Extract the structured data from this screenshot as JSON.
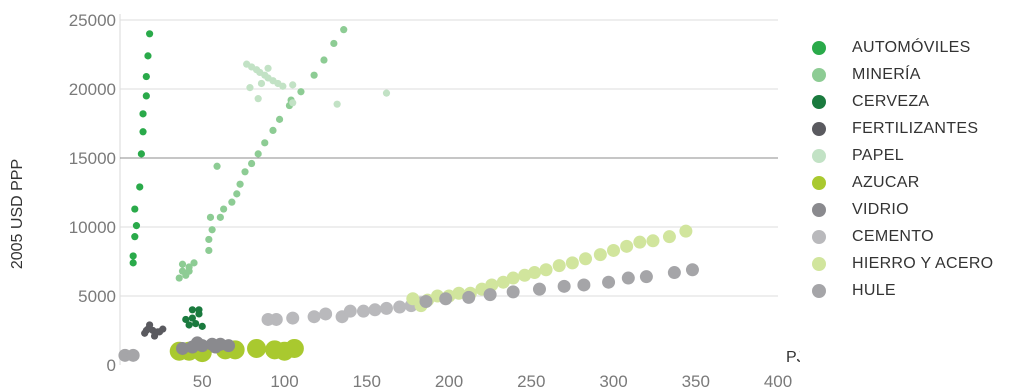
{
  "chart_data": {
    "type": "scatter",
    "xlabel": "PJ",
    "ylabel": "2005 USD PPP",
    "xlim": [
      0,
      400
    ],
    "ylim": [
      0,
      25000
    ],
    "x_ticks": [
      50,
      100,
      150,
      200,
      250,
      300,
      350,
      400
    ],
    "y_ticks": [
      0,
      5000,
      10000,
      15000,
      20000,
      25000
    ],
    "y_tick_labels": [
      "0",
      "5000",
      "10000",
      "15000",
      "20000",
      "25000"
    ],
    "grid": "horizontal",
    "legend_position": "right",
    "series": [
      {
        "name": "AUTOMÓVILES",
        "color": "#2aaa4a",
        "size": "small",
        "points": [
          [
            8,
            7400
          ],
          [
            8,
            7900
          ],
          [
            9,
            9300
          ],
          [
            9,
            11300
          ],
          [
            10,
            10100
          ],
          [
            12,
            12900
          ],
          [
            13,
            15300
          ],
          [
            14,
            16900
          ],
          [
            14,
            18200
          ],
          [
            16,
            19500
          ],
          [
            16,
            20900
          ],
          [
            17,
            22400
          ],
          [
            18,
            24000
          ]
        ]
      },
      {
        "name": "MINERÍA",
        "color": "#8dcc94",
        "size": "small",
        "points": [
          [
            36,
            6300
          ],
          [
            38,
            6800
          ],
          [
            38,
            7300
          ],
          [
            40,
            6500
          ],
          [
            42,
            7100
          ],
          [
            45,
            7400
          ],
          [
            42,
            6800
          ],
          [
            54,
            8300
          ],
          [
            54,
            9100
          ],
          [
            56,
            9800
          ],
          [
            55,
            10700
          ],
          [
            61,
            10700
          ],
          [
            63,
            11300
          ],
          [
            68,
            11800
          ],
          [
            71,
            12400
          ],
          [
            73,
            13100
          ],
          [
            76,
            14000
          ],
          [
            80,
            14600
          ],
          [
            84,
            15300
          ],
          [
            88,
            16100
          ],
          [
            93,
            17000
          ],
          [
            97,
            17800
          ],
          [
            103,
            18800
          ],
          [
            104,
            19200
          ],
          [
            110,
            19800
          ],
          [
            118,
            21000
          ],
          [
            124,
            22100
          ],
          [
            130,
            23300
          ],
          [
            136,
            24300
          ],
          [
            59,
            14400
          ]
        ]
      },
      {
        "name": "CERVEZA",
        "color": "#1a7a3e",
        "size": "small",
        "points": [
          [
            42,
            2900
          ],
          [
            44,
            3400
          ],
          [
            46,
            3000
          ],
          [
            48,
            3700
          ],
          [
            44,
            4000
          ],
          [
            50,
            2800
          ],
          [
            40,
            3300
          ],
          [
            48,
            4000
          ]
        ]
      },
      {
        "name": "FERTILIZANTES",
        "color": "#5a5a5f",
        "size": "small",
        "points": [
          [
            15,
            2300
          ],
          [
            17,
            2600
          ],
          [
            18,
            2900
          ],
          [
            20,
            2500
          ],
          [
            21,
            2100
          ],
          [
            23,
            2400
          ],
          [
            26,
            2600
          ],
          [
            24,
            2400
          ],
          [
            16,
            2500
          ]
        ]
      },
      {
        "name": "PAPEL",
        "color": "#c2e2c5",
        "size": "small",
        "points": [
          [
            77,
            21800
          ],
          [
            80,
            21600
          ],
          [
            83,
            21400
          ],
          [
            85,
            21200
          ],
          [
            88,
            21000
          ],
          [
            90,
            20800
          ],
          [
            93,
            20600
          ],
          [
            96,
            20400
          ],
          [
            99,
            20200
          ],
          [
            79,
            20100
          ],
          [
            86,
            20400
          ],
          [
            90,
            21500
          ],
          [
            105,
            20300
          ],
          [
            84,
            19300
          ],
          [
            105,
            19000
          ],
          [
            132,
            18900
          ],
          [
            162,
            19700
          ]
        ]
      },
      {
        "name": "AZUCAR",
        "color": "#a9c92f",
        "size": "large",
        "points": [
          [
            36,
            1000
          ],
          [
            42,
            1000
          ],
          [
            50,
            900
          ],
          [
            64,
            1100
          ],
          [
            70,
            1100
          ],
          [
            83,
            1200
          ],
          [
            94,
            1100
          ],
          [
            100,
            1000
          ],
          [
            106,
            1200
          ]
        ]
      },
      {
        "name": "VIDRIO",
        "color": "#8a8a8e",
        "size": "medium",
        "points": [
          [
            38,
            1200
          ],
          [
            44,
            1300
          ],
          [
            50,
            1400
          ],
          [
            56,
            1500
          ],
          [
            61,
            1500
          ],
          [
            66,
            1400
          ],
          [
            47,
            1600
          ],
          [
            58,
            1300
          ]
        ]
      },
      {
        "name": "CEMENTO",
        "color": "#b9b9bc",
        "size": "medium",
        "points": [
          [
            90,
            3300
          ],
          [
            95,
            3300
          ],
          [
            105,
            3400
          ],
          [
            118,
            3500
          ],
          [
            125,
            3700
          ],
          [
            135,
            3500
          ],
          [
            140,
            3900
          ],
          [
            148,
            3900
          ],
          [
            155,
            4000
          ],
          [
            162,
            4100
          ],
          [
            170,
            4200
          ],
          [
            177,
            4300
          ],
          [
            183,
            4500
          ]
        ]
      },
      {
        "name": "HIERRO Y ACERO",
        "color": "#d1e59d",
        "size": "medium",
        "points": [
          [
            178,
            4800
          ],
          [
            183,
            4300
          ],
          [
            187,
            4700
          ],
          [
            193,
            5000
          ],
          [
            200,
            5000
          ],
          [
            206,
            5200
          ],
          [
            213,
            5200
          ],
          [
            220,
            5500
          ],
          [
            226,
            5800
          ],
          [
            233,
            6000
          ],
          [
            239,
            6300
          ],
          [
            246,
            6500
          ],
          [
            252,
            6700
          ],
          [
            259,
            6900
          ],
          [
            267,
            7200
          ],
          [
            275,
            7400
          ],
          [
            283,
            7700
          ],
          [
            292,
            8000
          ],
          [
            300,
            8300
          ],
          [
            308,
            8600
          ],
          [
            316,
            8900
          ],
          [
            324,
            9000
          ],
          [
            334,
            9300
          ],
          [
            344,
            9700
          ]
        ]
      },
      {
        "name": "HULE",
        "color": "#a5a5a8",
        "size": "medium",
        "points": [
          [
            186,
            4600
          ],
          [
            198,
            4800
          ],
          [
            212,
            4900
          ],
          [
            225,
            5100
          ],
          [
            239,
            5300
          ],
          [
            255,
            5500
          ],
          [
            270,
            5700
          ],
          [
            282,
            5800
          ],
          [
            297,
            6000
          ],
          [
            309,
            6300
          ],
          [
            320,
            6400
          ],
          [
            337,
            6700
          ],
          [
            348,
            6900
          ],
          [
            3,
            700
          ],
          [
            8,
            700
          ]
        ]
      }
    ]
  }
}
